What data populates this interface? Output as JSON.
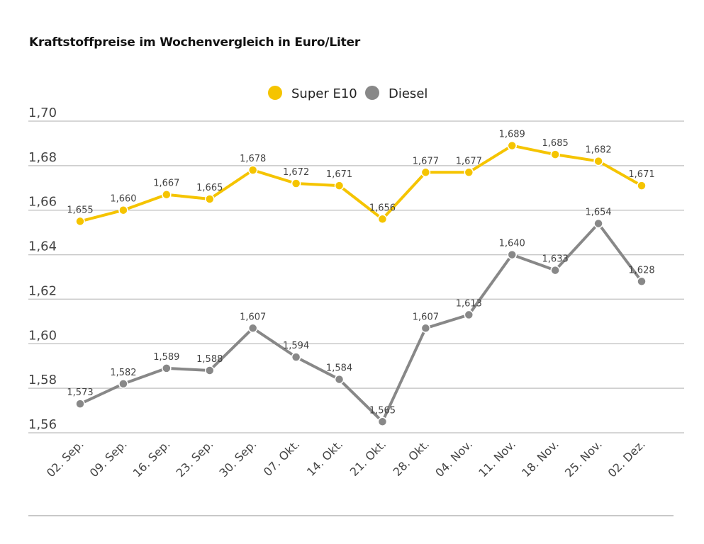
{
  "chart_data": {
    "type": "line",
    "title": "Kraftstoffpreise im Wochenvergleich in Euro/Liter",
    "xlabel": "",
    "ylabel": "",
    "categories": [
      "02. Sep.",
      "09. Sep.",
      "16. Sep.",
      "23. Sep.",
      "30. Sep.",
      "07. Okt.",
      "14. Okt.",
      "21. Okt.",
      "28. Okt.",
      "04. Nov.",
      "11. Nov.",
      "18. Nov.",
      "25. Nov.",
      "02. Dez."
    ],
    "series": [
      {
        "name": "Super E10",
        "color": "#f5c400",
        "values": [
          1.655,
          1.66,
          1.667,
          1.665,
          1.678,
          1.672,
          1.671,
          1.656,
          1.677,
          1.677,
          1.689,
          1.685,
          1.682,
          1.671
        ],
        "labels": [
          "1,655",
          "1,660",
          "1,667",
          "1,665",
          "1,678",
          "1,672",
          "1,671",
          "1,656",
          "1,677",
          "1,677",
          "1,689",
          "1,685",
          "1,682",
          "1,671"
        ]
      },
      {
        "name": "Diesel",
        "color": "#888888",
        "values": [
          1.573,
          1.582,
          1.589,
          1.588,
          1.607,
          1.594,
          1.584,
          1.565,
          1.607,
          1.613,
          1.64,
          1.633,
          1.654,
          1.628
        ],
        "labels": [
          "1,573",
          "1,582",
          "1,589",
          "1,588",
          "1,607",
          "1,594",
          "1,584",
          "1,565",
          "1,607",
          "1,613",
          "1,640",
          "1,633",
          "1,654",
          "1,628"
        ]
      }
    ],
    "ylim": [
      1.56,
      1.7
    ],
    "yticks": [
      1.56,
      1.58,
      1.6,
      1.62,
      1.64,
      1.66,
      1.68,
      1.7
    ],
    "ytick_labels": [
      "1,56",
      "1,58",
      "1,60",
      "1,62",
      "1,64",
      "1,66",
      "1,68",
      "1,70"
    ],
    "grid": true,
    "legend_position": "top-center"
  }
}
